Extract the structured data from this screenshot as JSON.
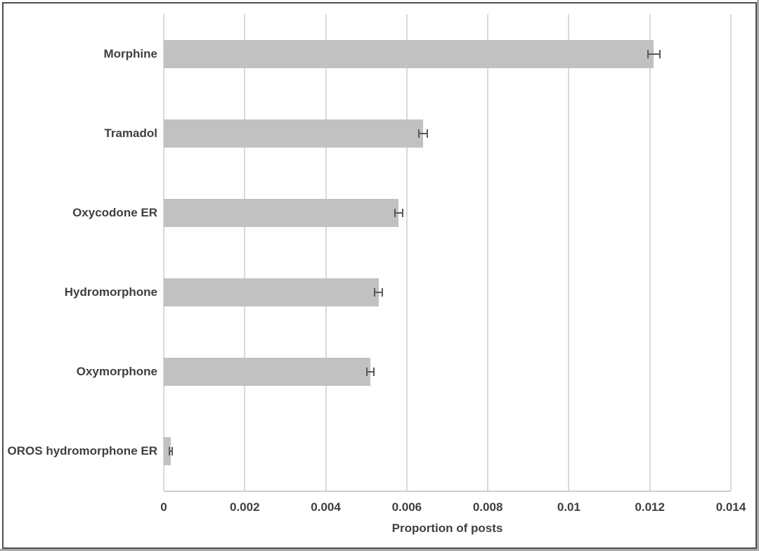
{
  "chart_data": {
    "type": "bar",
    "orientation": "horizontal",
    "title": "",
    "xlabel": "Proportion of posts",
    "ylabel": "",
    "categories": [
      "Morphine",
      "Tramadol",
      "Oxycodone ER",
      "Hydromorphone",
      "Oxymorphone",
      "OROS hydromorphone ER"
    ],
    "values": [
      0.0121,
      0.0064,
      0.0058,
      0.0053,
      0.0051,
      0.00017
    ],
    "error_bars": [
      0.00014,
      0.0001,
      9e-05,
      0.0001,
      8e-05,
      3e-05
    ],
    "xlim": [
      0,
      0.014
    ],
    "xticks": [
      0,
      0.002,
      0.004,
      0.006,
      0.008,
      0.01,
      0.012,
      0.014
    ],
    "xtick_labels": [
      "0",
      "0.002",
      "0.004",
      "0.006",
      "0.008",
      "0.01",
      "0.012",
      "0.014"
    ],
    "grid": "vertical-gridlines-on",
    "legend": "none",
    "colors": {
      "bar_fill": "#c1c1c1",
      "error_bar": "#595959",
      "gridline": "#d9d9d9",
      "text": "#3f3f3f",
      "frame_border": "#4d4d4d",
      "background": "#ffffff"
    }
  }
}
